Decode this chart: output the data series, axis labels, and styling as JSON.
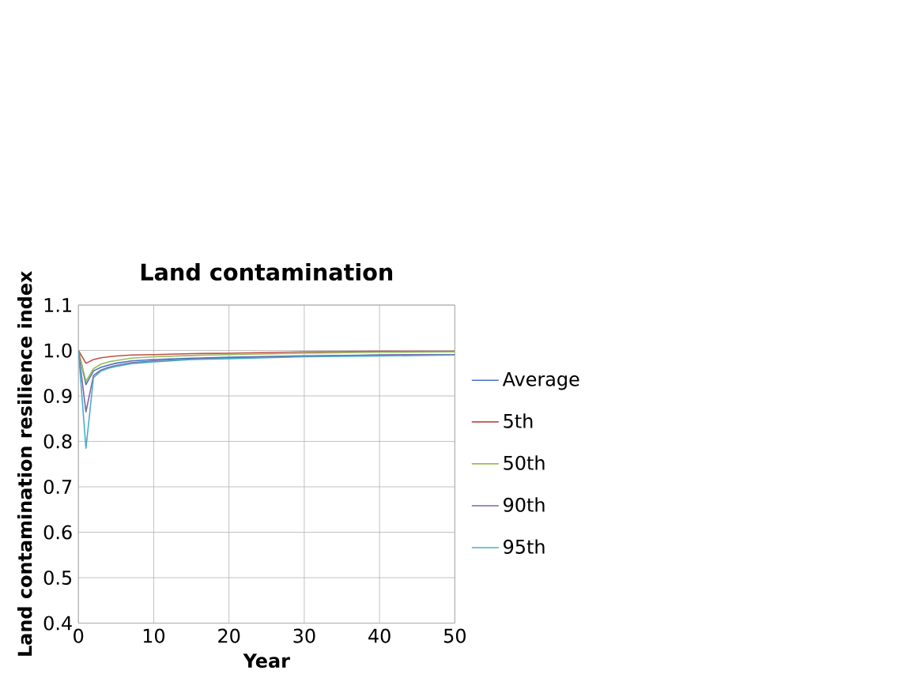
{
  "chart_data": {
    "type": "line",
    "title": "Land contamination",
    "xlabel": "Year",
    "ylabel": "Land contamination resilience index",
    "x": [
      0,
      1,
      2,
      3,
      4,
      5,
      7,
      10,
      15,
      20,
      30,
      40,
      50
    ],
    "xlim": [
      0,
      50
    ],
    "xticks": [
      0,
      10,
      20,
      30,
      40,
      50
    ],
    "ylim": [
      0.4,
      1.1
    ],
    "yticks": [
      0.4,
      0.5,
      0.6,
      0.7,
      0.8,
      0.9,
      {
        "value": 1.0,
        "label": "1.0"
      },
      1.1
    ],
    "grid": true,
    "legend": "right",
    "marker": "none",
    "line_style": "solid",
    "series": [
      {
        "name": "Average",
        "color": "#4472c4",
        "values": [
          1.0,
          0.925,
          0.955,
          0.963,
          0.968,
          0.972,
          0.977,
          0.98,
          0.983,
          0.985,
          0.988,
          0.99,
          0.991
        ]
      },
      {
        "name": "5th",
        "color": "#c0504d",
        "values": [
          1.0,
          0.972,
          0.98,
          0.984,
          0.986,
          0.988,
          0.99,
          0.991,
          0.993,
          0.994,
          0.997,
          0.998,
          0.998
        ]
      },
      {
        "name": "50th",
        "color": "#9bbb59",
        "values": [
          1.0,
          0.932,
          0.96,
          0.97,
          0.975,
          0.978,
          0.983,
          0.986,
          0.989,
          0.991,
          0.994,
          0.996,
          0.997
        ]
      },
      {
        "name": "90th",
        "color": "#8064a2",
        "values": [
          1.0,
          0.865,
          0.945,
          0.957,
          0.963,
          0.967,
          0.973,
          0.977,
          0.981,
          0.984,
          0.987,
          0.99,
          0.991
        ]
      },
      {
        "name": "95th",
        "color": "#4bacc6",
        "values": [
          1.0,
          0.785,
          0.94,
          0.955,
          0.961,
          0.965,
          0.971,
          0.975,
          0.98,
          0.982,
          0.986,
          0.988,
          0.99
        ]
      }
    ]
  }
}
